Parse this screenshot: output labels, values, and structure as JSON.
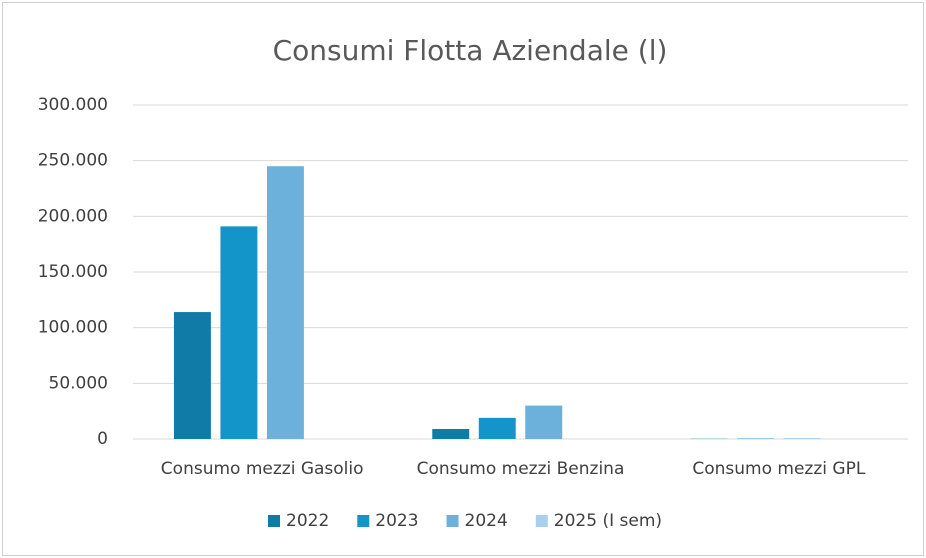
{
  "chart_data": {
    "type": "bar",
    "title": "Consumi Flotta Aziendale (l)",
    "categories": [
      "Consumo mezzi Gasolio",
      "Consumo mezzi Benzina",
      "Consumo mezzi GPL"
    ],
    "series": [
      {
        "name": "2022",
        "color": "#0f7ba6",
        "values": [
          114000,
          9000,
          200
        ]
      },
      {
        "name": "2023",
        "color": "#1395c9",
        "values": [
          191000,
          19000,
          400
        ]
      },
      {
        "name": "2024",
        "color": "#6cb0dc",
        "values": [
          245000,
          30000,
          500
        ]
      },
      {
        "name": "2025 (I sem)",
        "color": "#a9cfec",
        "values": [
          0,
          0,
          0
        ]
      }
    ],
    "ylim": [
      0,
      300000
    ],
    "yticks": [
      0,
      {
        "value": 50000,
        "label": "50.000"
      },
      {
        "value": 100000,
        "label": "100.000"
      },
      {
        "value": 150000,
        "label": "150.000"
      },
      {
        "value": 200000,
        "label": "200.000"
      },
      {
        "value": 250000,
        "label": "250.000"
      },
      {
        "value": 300000,
        "label": "300.000"
      }
    ],
    "grid": true,
    "legend": "bottom"
  }
}
